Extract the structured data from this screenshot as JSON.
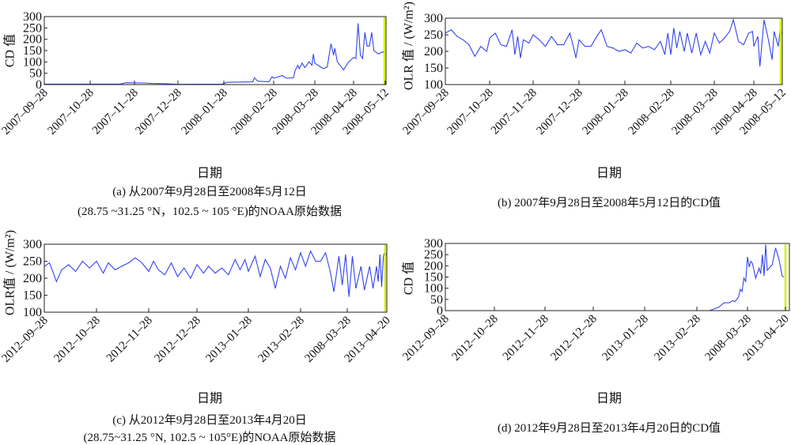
{
  "chart_data": [
    {
      "id": "a",
      "type": "line",
      "ylabel": "CD 值",
      "xlabel": "日期",
      "caption": [
        "(a) 从2007年9月28日至2008年5月12日",
        "(28.75 ~31.25 °N，102.5 ~ 105 °E)的NOAA原始数据"
      ],
      "ylim": [
        0,
        300
      ],
      "yticks": [
        "0",
        "50",
        "100",
        "150",
        "200",
        "250",
        "300"
      ],
      "xticks": [
        "2007–09–28",
        "2007–10–28",
        "2007–11–28",
        "2007–12–28",
        "2008–01–28",
        "2008–02–28",
        "2008–03–28",
        "2008–04–28",
        "2008–05–12"
      ],
      "line_color": "#3344ee",
      "highlight_date": "2008-05-12",
      "highlight_color": "#d8f000",
      "points": [
        [
          "2007-09-28",
          2
        ],
        [
          "2007-11-18",
          2
        ],
        [
          "2007-11-22",
          8
        ],
        [
          "2007-12-05",
          7
        ],
        [
          "2007-12-10",
          5
        ],
        [
          "2007-12-20",
          4
        ],
        [
          "2007-12-28",
          1
        ],
        [
          "2008-01-27",
          2
        ],
        [
          "2008-01-30",
          10
        ],
        [
          "2008-02-15",
          12
        ],
        [
          "2008-02-16",
          30
        ],
        [
          "2008-02-18",
          15
        ],
        [
          "2008-02-25",
          12
        ],
        [
          "2008-02-27",
          35
        ],
        [
          "2008-02-28",
          28
        ],
        [
          "2008-03-05",
          40
        ],
        [
          "2008-03-08",
          28
        ],
        [
          "2008-03-13",
          30
        ],
        [
          "2008-03-14",
          60
        ],
        [
          "2008-03-16",
          85
        ],
        [
          "2008-03-17",
          70
        ],
        [
          "2008-03-19",
          95
        ],
        [
          "2008-03-21",
          75
        ],
        [
          "2008-03-24",
          100
        ],
        [
          "2008-03-26",
          85
        ],
        [
          "2008-03-27",
          135
        ],
        [
          "2008-03-28",
          95
        ],
        [
          "2008-04-01",
          80
        ],
        [
          "2008-04-04",
          70
        ],
        [
          "2008-04-07",
          78
        ],
        [
          "2008-04-09",
          150
        ],
        [
          "2008-04-10",
          180
        ],
        [
          "2008-04-12",
          130
        ],
        [
          "2008-04-13",
          160
        ],
        [
          "2008-04-15",
          100
        ],
        [
          "2008-04-20",
          65
        ],
        [
          "2008-04-24",
          100
        ],
        [
          "2008-04-28",
          120
        ],
        [
          "2008-04-29",
          115
        ],
        [
          "2008-04-30",
          270
        ],
        [
          "2008-05-01",
          130
        ],
        [
          "2008-05-02",
          115
        ],
        [
          "2008-05-03",
          230
        ],
        [
          "2008-05-04",
          170
        ],
        [
          "2008-05-05",
          170
        ],
        [
          "2008-05-06",
          230
        ],
        [
          "2008-05-07",
          150
        ],
        [
          "2008-05-09",
          135
        ],
        [
          "2008-05-11",
          145
        ],
        [
          "2008-05-12",
          130
        ]
      ]
    },
    {
      "id": "b",
      "type": "line",
      "ylabel": "OLR 值 / (W/m²)",
      "xlabel": "日期",
      "caption": [
        "(b) 2007年9月28日至2008年5月12日的CD值"
      ],
      "ylim": [
        100,
        300
      ],
      "yticks": [
        "100",
        "150",
        "200",
        "250",
        "300"
      ],
      "xticks": [
        "2007–09–28",
        "2007–10–28",
        "2007–11–28",
        "2007–12–28",
        "2008–01–28",
        "2008–02–28",
        "2008–03–28",
        "2008–04–28",
        "2008–05–12"
      ],
      "line_color": "#3344ee",
      "highlight_date": "2008-05-12",
      "highlight_color": "#d8f000",
      "points": [
        [
          "2007-09-28",
          255
        ],
        [
          "2007-10-02",
          265
        ],
        [
          "2007-10-06",
          245
        ],
        [
          "2007-10-10",
          235
        ],
        [
          "2007-10-14",
          220
        ],
        [
          "2007-10-18",
          185
        ],
        [
          "2007-10-22",
          215
        ],
        [
          "2007-10-26",
          200
        ],
        [
          "2007-10-28",
          240
        ],
        [
          "2007-11-01",
          255
        ],
        [
          "2007-11-05",
          220
        ],
        [
          "2007-11-09",
          215
        ],
        [
          "2007-11-13",
          265
        ],
        [
          "2007-11-15",
          190
        ],
        [
          "2007-11-17",
          245
        ],
        [
          "2007-11-19",
          180
        ],
        [
          "2007-11-21",
          235
        ],
        [
          "2007-11-25",
          225
        ],
        [
          "2007-11-28",
          250
        ],
        [
          "2007-12-02",
          235
        ],
        [
          "2007-12-06",
          215
        ],
        [
          "2007-12-10",
          245
        ],
        [
          "2007-12-14",
          220
        ],
        [
          "2007-12-18",
          220
        ],
        [
          "2007-12-22",
          255
        ],
        [
          "2007-12-24",
          220
        ],
        [
          "2007-12-26",
          180
        ],
        [
          "2007-12-28",
          235
        ],
        [
          "2008-01-01",
          215
        ],
        [
          "2008-01-05",
          215
        ],
        [
          "2008-01-09",
          245
        ],
        [
          "2008-01-12",
          265
        ],
        [
          "2008-01-16",
          215
        ],
        [
          "2008-01-20",
          210
        ],
        [
          "2008-01-24",
          200
        ],
        [
          "2008-01-28",
          205
        ],
        [
          "2008-02-01",
          195
        ],
        [
          "2008-02-05",
          225
        ],
        [
          "2008-02-09",
          210
        ],
        [
          "2008-02-13",
          215
        ],
        [
          "2008-02-17",
          205
        ],
        [
          "2008-02-21",
          230
        ],
        [
          "2008-02-24",
          190
        ],
        [
          "2008-02-26",
          255
        ],
        [
          "2008-02-28",
          190
        ],
        [
          "2008-03-01",
          270
        ],
        [
          "2008-03-03",
          210
        ],
        [
          "2008-03-05",
          260
        ],
        [
          "2008-03-08",
          200
        ],
        [
          "2008-03-10",
          255
        ],
        [
          "2008-03-13",
          195
        ],
        [
          "2008-03-16",
          255
        ],
        [
          "2008-03-19",
          190
        ],
        [
          "2008-03-22",
          230
        ],
        [
          "2008-03-25",
          195
        ],
        [
          "2008-03-28",
          255
        ],
        [
          "2008-04-01",
          225
        ],
        [
          "2008-04-05",
          240
        ],
        [
          "2008-04-09",
          260
        ],
        [
          "2008-04-12",
          295
        ],
        [
          "2008-04-16",
          230
        ],
        [
          "2008-04-20",
          220
        ],
        [
          "2008-04-24",
          255
        ],
        [
          "2008-04-27",
          260
        ],
        [
          "2008-04-28",
          215
        ],
        [
          "2008-04-30",
          245
        ],
        [
          "2008-05-01",
          155
        ],
        [
          "2008-05-03",
          295
        ],
        [
          "2008-05-05",
          240
        ],
        [
          "2008-05-07",
          175
        ],
        [
          "2008-05-08",
          260
        ],
        [
          "2008-05-10",
          215
        ],
        [
          "2008-05-11",
          265
        ],
        [
          "2008-05-12",
          250
        ]
      ]
    },
    {
      "id": "c",
      "type": "line",
      "ylabel": "OLR值 / (W/m²)",
      "xlabel": "日期",
      "caption": [
        "(c) 从2012年9月28日至2013年4月20日",
        "(28.75~31.25 °N, 102.5 ~ 105°E)的NOAA原始数据"
      ],
      "ylim": [
        100,
        300
      ],
      "yticks": [
        "100",
        "150",
        "200",
        "250",
        "300"
      ],
      "xticks": [
        "2012–09–28",
        "2012–10–28",
        "2012–11–28",
        "2012–12–28",
        "2013–01–28",
        "2013–02–28",
        "2008–03–28",
        "2013–04–20"
      ],
      "line_color": "#3344ee",
      "highlight_date": "2013-04-20",
      "highlight_color": "#d8f000",
      "points": [
        [
          "2012-09-28",
          235
        ],
        [
          "2012-10-01",
          245
        ],
        [
          "2012-10-05",
          190
        ],
        [
          "2012-10-08",
          225
        ],
        [
          "2012-10-12",
          240
        ],
        [
          "2012-10-16",
          220
        ],
        [
          "2012-10-20",
          250
        ],
        [
          "2012-10-24",
          230
        ],
        [
          "2012-10-28",
          250
        ],
        [
          "2012-11-01",
          215
        ],
        [
          "2012-11-04",
          245
        ],
        [
          "2012-11-08",
          225
        ],
        [
          "2012-11-12",
          235
        ],
        [
          "2012-11-16",
          245
        ],
        [
          "2012-11-20",
          260
        ],
        [
          "2012-11-24",
          245
        ],
        [
          "2012-11-28",
          220
        ],
        [
          "2012-12-01",
          250
        ],
        [
          "2012-12-04",
          225
        ],
        [
          "2012-12-08",
          210
        ],
        [
          "2012-12-12",
          245
        ],
        [
          "2012-12-16",
          205
        ],
        [
          "2012-12-20",
          230
        ],
        [
          "2012-12-24",
          200
        ],
        [
          "2012-12-28",
          240
        ],
        [
          "2013-01-01",
          215
        ],
        [
          "2013-01-04",
          235
        ],
        [
          "2013-01-08",
          215
        ],
        [
          "2013-01-12",
          230
        ],
        [
          "2013-01-16",
          210
        ],
        [
          "2013-01-20",
          255
        ],
        [
          "2013-01-23",
          225
        ],
        [
          "2013-01-26",
          255
        ],
        [
          "2013-01-28",
          220
        ],
        [
          "2013-02-01",
          265
        ],
        [
          "2013-02-04",
          205
        ],
        [
          "2013-02-07",
          255
        ],
        [
          "2013-02-10",
          230
        ],
        [
          "2013-02-13",
          170
        ],
        [
          "2013-02-16",
          235
        ],
        [
          "2013-02-19",
          200
        ],
        [
          "2013-02-22",
          260
        ],
        [
          "2013-02-25",
          225
        ],
        [
          "2013-02-28",
          275
        ],
        [
          "2013-03-03",
          235
        ],
        [
          "2013-03-06",
          280
        ],
        [
          "2013-03-09",
          250
        ],
        [
          "2013-03-12",
          250
        ],
        [
          "2013-03-15",
          275
        ],
        [
          "2013-03-18",
          215
        ],
        [
          "2013-03-20",
          160
        ],
        [
          "2013-03-23",
          265
        ],
        [
          "2013-03-25",
          180
        ],
        [
          "2013-03-27",
          270
        ],
        [
          "2013-03-29",
          145
        ],
        [
          "2013-03-31",
          265
        ],
        [
          "2013-04-02",
          170
        ],
        [
          "2013-04-05",
          235
        ],
        [
          "2013-04-07",
          165
        ],
        [
          "2013-04-10",
          235
        ],
        [
          "2013-04-12",
          170
        ],
        [
          "2013-04-14",
          235
        ],
        [
          "2013-04-15",
          190
        ],
        [
          "2013-04-16",
          270
        ],
        [
          "2013-04-17",
          175
        ],
        [
          "2013-04-18",
          265
        ],
        [
          "2013-04-19",
          280
        ],
        [
          "2013-04-20",
          265
        ]
      ]
    },
    {
      "id": "d",
      "type": "line",
      "ylabel": "CD 值",
      "xlabel": "日期",
      "caption": [
        "(d) 2012年9月28日至2013年4月20日的CD值"
      ],
      "ylim": [
        0,
        300
      ],
      "yticks": [
        "0",
        "50",
        "100",
        "150",
        "200",
        "250",
        "300"
      ],
      "xticks": [
        "2012–09–28",
        "2012–10–28",
        "2012–11–28",
        "2012–12–28",
        "2013–01–28",
        "2013–02–28",
        "2008–03–28",
        "2013–04–20"
      ],
      "line_color": "#3344ee",
      "highlight_date": "2013-04-20",
      "highlight_color": "#d8f000",
      "points": [
        [
          "2012-09-28",
          0
        ],
        [
          "2013-03-07",
          0
        ],
        [
          "2013-03-12",
          15
        ],
        [
          "2013-03-15",
          35
        ],
        [
          "2013-03-18",
          35
        ],
        [
          "2013-03-20",
          45
        ],
        [
          "2013-03-21",
          40
        ],
        [
          "2013-03-23",
          60
        ],
        [
          "2013-03-24",
          95
        ],
        [
          "2013-03-25",
          85
        ],
        [
          "2013-03-26",
          145
        ],
        [
          "2013-03-27",
          130
        ],
        [
          "2013-03-28",
          240
        ],
        [
          "2013-03-29",
          195
        ],
        [
          "2013-03-30",
          220
        ],
        [
          "2013-03-31",
          210
        ],
        [
          "2013-04-02",
          145
        ],
        [
          "2013-04-04",
          190
        ],
        [
          "2013-04-05",
          165
        ],
        [
          "2013-04-06",
          250
        ],
        [
          "2013-04-07",
          155
        ],
        [
          "2013-04-08",
          295
        ],
        [
          "2013-04-09",
          180
        ],
        [
          "2013-04-12",
          205
        ],
        [
          "2013-04-14",
          280
        ],
        [
          "2013-04-16",
          230
        ],
        [
          "2013-04-18",
          155
        ],
        [
          "2013-04-19",
          150
        ]
      ]
    }
  ]
}
